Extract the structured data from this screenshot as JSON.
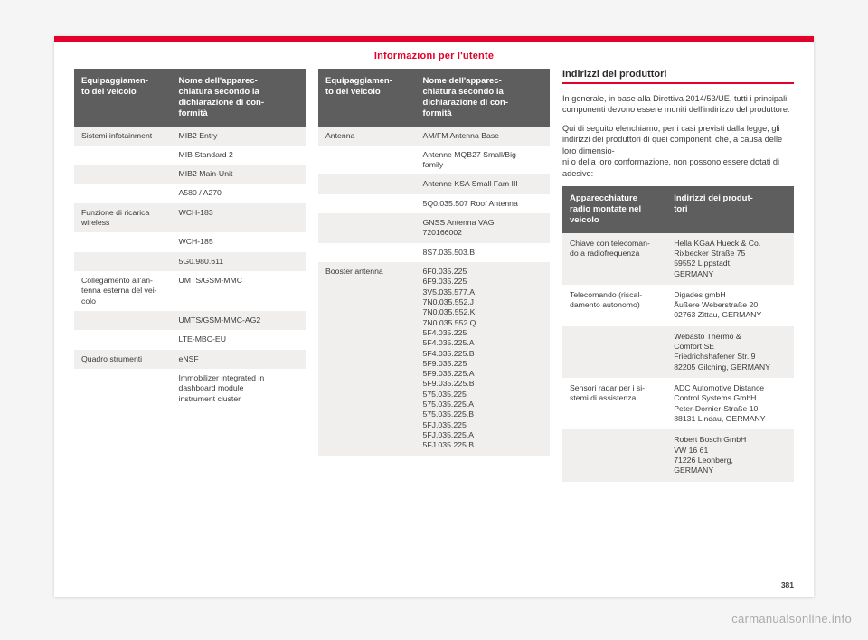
{
  "band_title": "Informazioni per l'utente",
  "page_number": "381",
  "watermark": "carmanualsonline.info",
  "table_headers": {
    "equip": "Equipaggiamen-\nto del veicolo",
    "device": "Nome dell'apparec-\nchiatura secondo la\ndichiarazione di con-\nformità"
  },
  "left_rows": [
    {
      "shade": "a",
      "cat": "Sistemi infotainment",
      "val": "MIB2 Entry"
    },
    {
      "shade": "b",
      "cat": "",
      "val": "MIB Standard 2"
    },
    {
      "shade": "a",
      "cat": "",
      "val": "MIB2 Main-Unit"
    },
    {
      "shade": "b",
      "cat": "",
      "val": "A580 / A270"
    },
    {
      "shade": "a",
      "cat": "Funzione di ricarica\nwireless",
      "val": "WCH-183"
    },
    {
      "shade": "b",
      "cat": "",
      "val": "WCH-185"
    },
    {
      "shade": "a",
      "cat": "",
      "val": "5G0.980.611"
    },
    {
      "shade": "b",
      "cat": "Collegamento all'an-\ntenna esterna del vei-\ncolo",
      "val": "UMTS/GSM-MMC"
    },
    {
      "shade": "a",
      "cat": "",
      "val": "UMTS/GSM-MMC-AG2"
    },
    {
      "shade": "b",
      "cat": "",
      "val": "LTE-MBC-EU"
    },
    {
      "shade": "a",
      "cat": "Quadro strumenti",
      "val": "eNSF"
    },
    {
      "shade": "b",
      "cat": "",
      "val": "Immobilizer integrated in\ndashboard module\ninstrument cluster"
    }
  ],
  "mid_rows": [
    {
      "shade": "a",
      "cat": "Antenna",
      "val": "AM/FM Antenna Base"
    },
    {
      "shade": "b",
      "cat": "",
      "val": "Antenne MQB27 Small/Big\nfamily"
    },
    {
      "shade": "a",
      "cat": "",
      "val": "Antenne KSA Small Fam III"
    },
    {
      "shade": "b",
      "cat": "",
      "val": "5Q0.035.507 Roof Antenna"
    },
    {
      "shade": "a",
      "cat": "",
      "val": "GNSS Antenna VAG\n720166002"
    },
    {
      "shade": "b",
      "cat": "",
      "val": "8S7.035.503.B"
    },
    {
      "shade": "a",
      "cat": "Booster antenna",
      "val": "6F0.035.225\n6F9.035.225\n3V5.035.577.A\n7N0.035.552.J\n7N0.035.552.K\n7N0.035.552.Q\n5F4.035.225\n5F4.035.225.A\n5F4.035.225.B\n5F9.035.225\n5F9.035.225.A\n5F9.035.225.B\n575.035.225\n575.035.225.A\n575.035.225.B\n5FJ.035.225\n5FJ.035.225.A\n5FJ.035.225.B"
    }
  ],
  "right": {
    "section_title": "Indirizzi dei produttori",
    "p1": "In generale, in base alla Direttiva 2014/53/UE, tutti i principali componenti devono essere muniti dell'indirizzo del produttore.",
    "p2": "Qui di seguito elenchiamo, per i casi previsti dalla legge, gli indirizzi dei produttori di quei componenti che, a causa delle loro dimensio-\nni o della loro conformazione, non possono essere dotati di adesivo:",
    "addr_headers": {
      "radio": "Apparecchiature\nradio montate nel\nveicolo",
      "addr": "Indirizzi dei produt-\ntori"
    },
    "addr_rows": [
      {
        "shade": "a",
        "cat": "Chiave con telecoman-\ndo a radiofrequenza",
        "val": "Hella KGaA Hueck & Co.\nRixbecker Straße 75\n59552 Lippstadt,\nGERMANY"
      },
      {
        "shade": "b",
        "cat": "Telecomando (riscal-\ndamento autonomo)",
        "val": "Digades gmbH\nÄußere Weberstraße 20\n02763 Zittau, GERMANY"
      },
      {
        "shade": "a",
        "cat": "",
        "val": "Webasto Thermo &\nComfort SE\nFriedrichshafener Str. 9\n82205 Gilching, GERMANY"
      },
      {
        "shade": "b",
        "cat": "Sensori radar per i si-\nstemi di assistenza",
        "val": "ADC Automotive Distance\nControl Systems GmbH\nPeter-Dornier-Straße 10\n88131 Lindau, GERMANY"
      },
      {
        "shade": "a",
        "cat": "",
        "val": "Robert Bosch GmbH\nVW 16 61\n71226 Leonberg,\nGERMANY"
      }
    ]
  }
}
